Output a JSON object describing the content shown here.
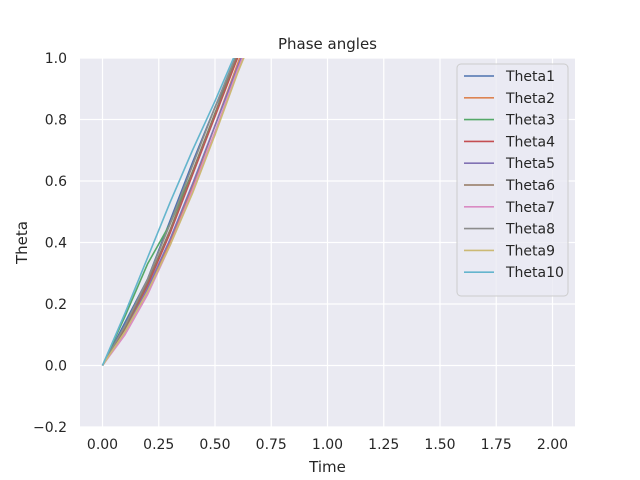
{
  "chart_data": {
    "type": "line",
    "title": "Phase angles",
    "xlabel": "Time",
    "ylabel": "Theta",
    "xlim": [
      -0.1,
      2.1
    ],
    "ylim": [
      -0.2,
      1.0
    ],
    "xticks": [
      "0.00",
      "0.25",
      "0.50",
      "0.75",
      "1.00",
      "1.25",
      "1.50",
      "1.75",
      "2.00"
    ],
    "yticks": [
      "−0.2",
      "0.0",
      "0.2",
      "0.4",
      "0.6",
      "0.8",
      "1.0"
    ],
    "grid": true,
    "legend_position": "top-right",
    "series": [
      {
        "name": "Theta1",
        "color": "#4c72b0",
        "x": [
          0,
          0.1,
          0.2,
          0.3,
          0.4,
          0.5,
          0.6,
          0.65
        ],
        "y": [
          0,
          0.14,
          0.28,
          0.47,
          0.66,
          0.84,
          1.0,
          1.08
        ]
      },
      {
        "name": "Theta2",
        "color": "#dd8452",
        "x": [
          0,
          0.1,
          0.2,
          0.3,
          0.4,
          0.5,
          0.6,
          0.65
        ],
        "y": [
          0,
          0.11,
          0.24,
          0.4,
          0.58,
          0.78,
          0.98,
          1.08
        ]
      },
      {
        "name": "Theta3",
        "color": "#55a868",
        "x": [
          0,
          0.1,
          0.2,
          0.3,
          0.4,
          0.5,
          0.6,
          0.65
        ],
        "y": [
          0,
          0.16,
          0.33,
          0.46,
          0.63,
          0.82,
          1.01,
          1.1
        ]
      },
      {
        "name": "Theta4",
        "color": "#c44e52",
        "x": [
          0,
          0.1,
          0.2,
          0.3,
          0.4,
          0.5,
          0.6,
          0.65
        ],
        "y": [
          0,
          0.12,
          0.26,
          0.43,
          0.62,
          0.81,
          1.0,
          1.09
        ]
      },
      {
        "name": "Theta5",
        "color": "#8172b3",
        "x": [
          0,
          0.1,
          0.2,
          0.3,
          0.4,
          0.5,
          0.6,
          0.65
        ],
        "y": [
          0,
          0.11,
          0.25,
          0.41,
          0.59,
          0.78,
          0.97,
          1.06
        ]
      },
      {
        "name": "Theta6",
        "color": "#937860",
        "x": [
          0,
          0.1,
          0.2,
          0.3,
          0.4,
          0.5,
          0.6,
          0.65
        ],
        "y": [
          0,
          0.12,
          0.27,
          0.44,
          0.63,
          0.82,
          1.01,
          1.1
        ]
      },
      {
        "name": "Theta7",
        "color": "#da8bc3",
        "x": [
          0,
          0.1,
          0.2,
          0.3,
          0.4,
          0.5,
          0.6,
          0.65
        ],
        "y": [
          0,
          0.1,
          0.23,
          0.39,
          0.57,
          0.76,
          0.96,
          1.05
        ]
      },
      {
        "name": "Theta8",
        "color": "#8c8c8c",
        "x": [
          0,
          0.1,
          0.2,
          0.3,
          0.4,
          0.5,
          0.6,
          0.65
        ],
        "y": [
          0,
          0.13,
          0.28,
          0.46,
          0.65,
          0.84,
          1.02,
          1.11
        ]
      },
      {
        "name": "Theta9",
        "color": "#ccb974",
        "x": [
          0,
          0.1,
          0.2,
          0.3,
          0.4,
          0.5,
          0.6,
          0.65
        ],
        "y": [
          0,
          0.11,
          0.24,
          0.39,
          0.56,
          0.75,
          0.95,
          1.04
        ]
      },
      {
        "name": "Theta10",
        "color": "#64b5cd",
        "x": [
          0,
          0.1,
          0.2,
          0.3,
          0.4,
          0.5,
          0.6
        ],
        "y": [
          0,
          0.17,
          0.35,
          0.53,
          0.7,
          0.86,
          1.03
        ]
      }
    ]
  }
}
